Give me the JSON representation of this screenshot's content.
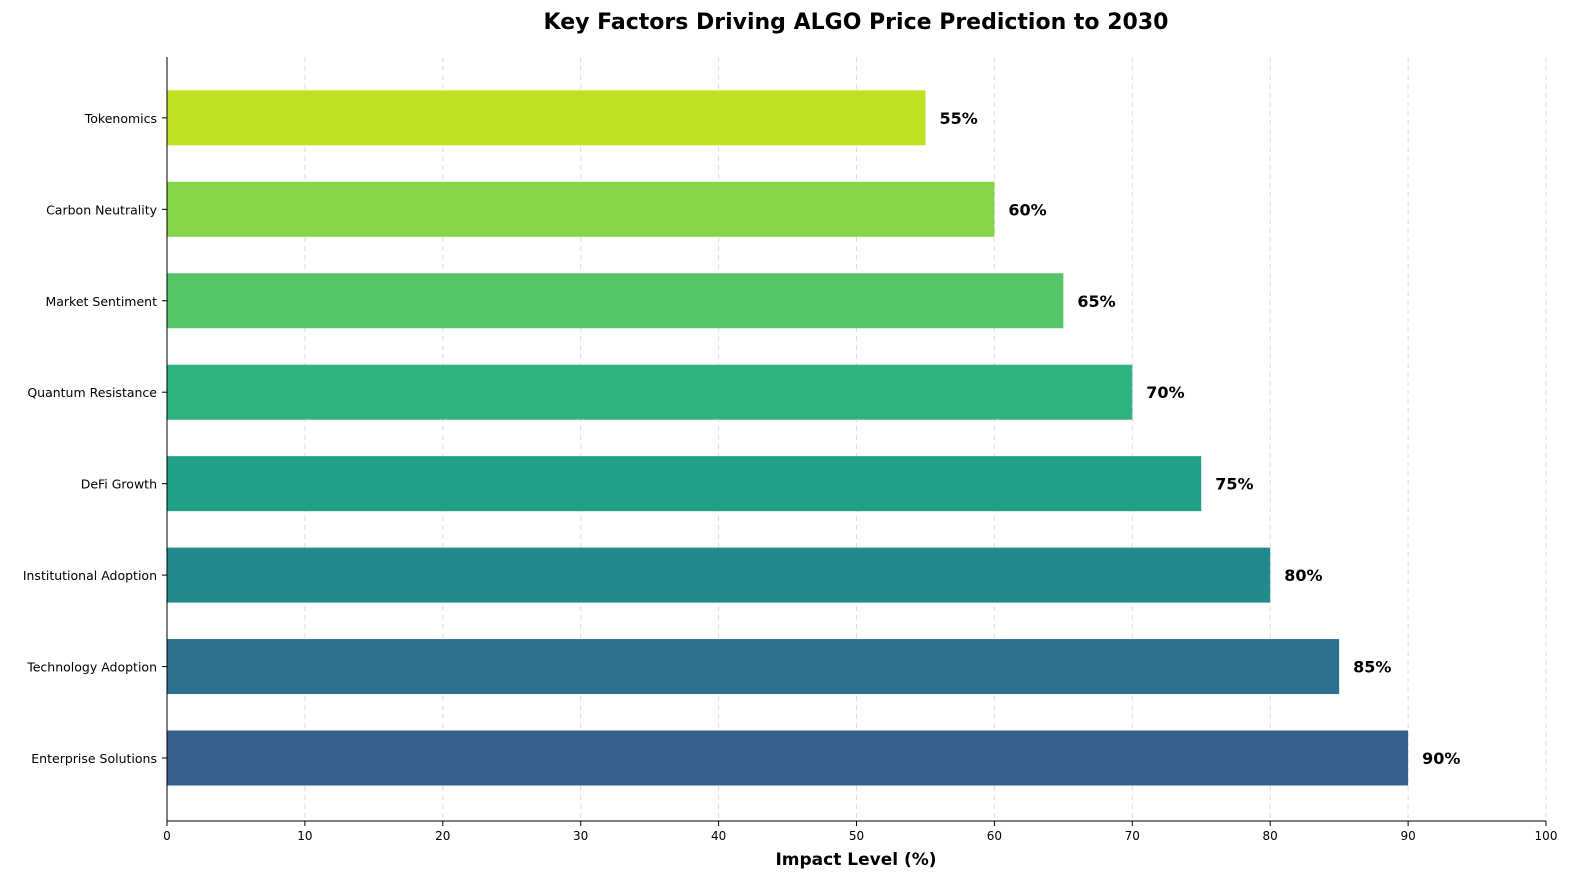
{
  "chart_data": {
    "type": "bar",
    "orientation": "horizontal",
    "title": "Key Factors Driving ALGO Price Prediction to 2030",
    "xlabel": "Impact Level (%)",
    "ylabel": "",
    "xlim": [
      0,
      100
    ],
    "xticks": [
      0,
      10,
      20,
      30,
      40,
      50,
      60,
      70,
      80,
      90,
      100
    ],
    "grid": "x, dashed",
    "categories": [
      "Enterprise Solutions",
      "Technology Adoption",
      "Institutional Adoption",
      "DeFi Growth",
      "Quantum Resistance",
      "Market Sentiment",
      "Carbon Neutrality",
      "Tokenomics"
    ],
    "values": [
      90,
      85,
      80,
      75,
      70,
      65,
      60,
      55
    ],
    "data_labels": [
      "90%",
      "85%",
      "80%",
      "75%",
      "70%",
      "65%",
      "60%",
      "55%"
    ],
    "colors": [
      "#365f8c",
      "#2c728e",
      "#23898e",
      "#21a086",
      "#2fb27c",
      "#54c568",
      "#86d549",
      "#bde123"
    ]
  }
}
